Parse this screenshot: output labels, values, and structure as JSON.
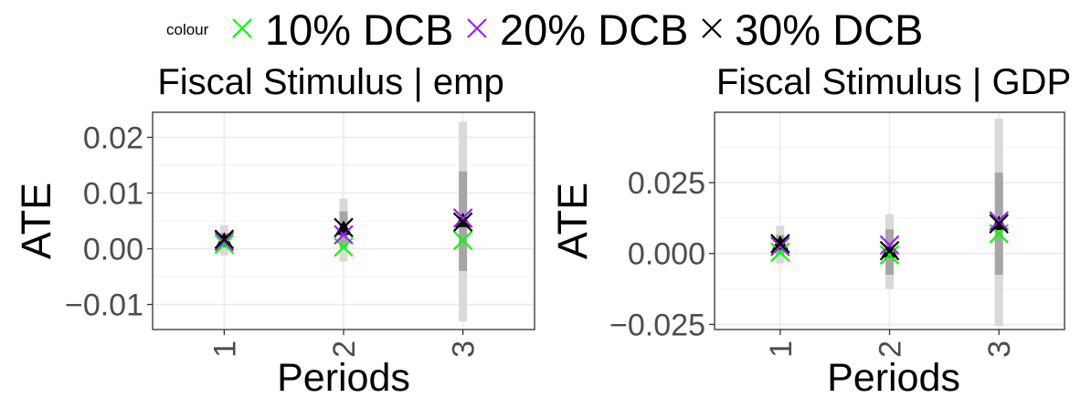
{
  "legend": {
    "title": "colour",
    "items": [
      {
        "label": "10% DCB",
        "color": "#00ff00"
      },
      {
        "label": "20% DCB",
        "color": "#a020f0"
      },
      {
        "label": "30% DCB",
        "color": "#000000"
      }
    ]
  },
  "chart_data": [
    {
      "type": "scatter",
      "title": "Fiscal Stimulus | emp",
      "xlabel": "Periods",
      "ylabel": "ATE",
      "categories": [
        "1",
        "2",
        "3"
      ],
      "xlim": [
        0.4,
        3.6
      ],
      "ylim": [
        -0.0145,
        0.0245
      ],
      "yticks": [
        {
          "value": -0.01,
          "label": "−0.01"
        },
        {
          "value": 0.0,
          "label": "0.00"
        },
        {
          "value": 0.01,
          "label": "0.01"
        },
        {
          "value": 0.02,
          "label": "0.02"
        }
      ],
      "grid": true,
      "intervals": [
        {
          "period": 1,
          "outer": [
            -0.0012,
            0.0042
          ],
          "inner": [
            0.0002,
            0.0028
          ]
        },
        {
          "period": 2,
          "outer": [
            -0.0023,
            0.009
          ],
          "inner": [
            0.0002,
            0.0067
          ]
        },
        {
          "period": 3,
          "outer": [
            -0.013,
            0.0228
          ],
          "inner": [
            -0.004,
            0.0139
          ]
        }
      ],
      "point_estimate": [
        0.0015,
        0.0036,
        0.005
      ],
      "series": [
        {
          "name": "10% DCB",
          "values": [
            0.0008,
            0.0003,
            0.0015
          ]
        },
        {
          "name": "20% DCB",
          "values": [
            0.0013,
            0.0025,
            0.0055
          ]
        },
        {
          "name": "30% DCB",
          "values": [
            0.0017,
            0.0038,
            0.0048
          ]
        }
      ]
    },
    {
      "type": "scatter",
      "title": "Fiscal Stimulus | GDP",
      "xlabel": "Periods",
      "ylabel": "ATE",
      "categories": [
        "1",
        "2",
        "3"
      ],
      "xlim": [
        0.4,
        3.6
      ],
      "ylim": [
        -0.0268,
        0.0498
      ],
      "yticks": [
        {
          "value": -0.025,
          "label": "−0.025"
        },
        {
          "value": 0.0,
          "label": "0.000"
        },
        {
          "value": 0.025,
          "label": "0.025"
        }
      ],
      "grid": true,
      "intervals": [
        {
          "period": 1,
          "outer": [
            -0.0035,
            0.0098
          ],
          "inner": [
            -0.0005,
            0.0065
          ]
        },
        {
          "period": 2,
          "outer": [
            -0.0125,
            0.0138
          ],
          "inner": [
            -0.0075,
            0.0085
          ]
        },
        {
          "period": 3,
          "outer": [
            -0.0255,
            0.0475
          ],
          "inner": [
            -0.0075,
            0.0285
          ]
        }
      ],
      "point_estimate": [
        0.0035,
        0.0008,
        0.0105
      ],
      "series": [
        {
          "name": "10% DCB",
          "values": [
            0.0005,
            -0.0005,
            0.007
          ]
        },
        {
          "name": "20% DCB",
          "values": [
            0.0025,
            0.003,
            0.0115
          ]
        },
        {
          "name": "30% DCB",
          "values": [
            0.0035,
            0.001,
            0.0105
          ]
        }
      ]
    }
  ]
}
